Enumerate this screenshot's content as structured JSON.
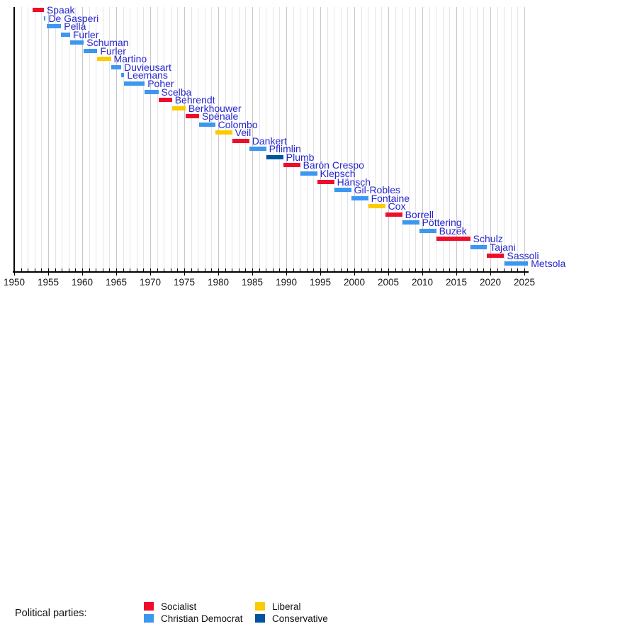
{
  "chart_data": {
    "type": "timeline",
    "x_axis": {
      "min": 1950,
      "max": 2026,
      "major_tick_step": 5,
      "minor_tick_step": 1,
      "tick_labels": [
        "1950",
        "1955",
        "1960",
        "1965",
        "1970",
        "1975",
        "1980",
        "1985",
        "1990",
        "1995",
        "2000",
        "2005",
        "2010",
        "2015",
        "2020",
        "2025"
      ]
    },
    "grid": true,
    "parties": [
      {
        "id": "socialist",
        "label": "Socialist",
        "color": "#ED0E2C"
      },
      {
        "id": "christian-democrat",
        "label": "Christian Democrat",
        "color": "#3C97F0"
      },
      {
        "id": "liberal",
        "label": "Liberal",
        "color": "#FACC00"
      },
      {
        "id": "conservative",
        "label": "Conservative",
        "color": "#00549E"
      }
    ],
    "legend": {
      "title": "Political parties:",
      "position": "bottom"
    },
    "bars": [
      {
        "name": "Spaak",
        "party": "socialist",
        "start": 1952.7,
        "end": 1954.36
      },
      {
        "name": "De Gasperi",
        "party": "christian-democrat",
        "start": 1954.36,
        "end": 1954.63
      },
      {
        "name": "Pella",
        "party": "christian-democrat",
        "start": 1954.8,
        "end": 1956.9
      },
      {
        "name": "Furler",
        "party": "christian-democrat",
        "start": 1956.9,
        "end": 1958.21
      },
      {
        "name": "Schuman",
        "party": "christian-democrat",
        "start": 1958.21,
        "end": 1960.24
      },
      {
        "name": "Furler",
        "party": "christian-democrat",
        "start": 1960.24,
        "end": 1962.23
      },
      {
        "name": "Martino",
        "party": "liberal",
        "start": 1962.23,
        "end": 1964.22
      },
      {
        "name": "Duvieusart",
        "party": "christian-democrat",
        "start": 1964.22,
        "end": 1965.73
      },
      {
        "name": "Leemans",
        "party": "christian-democrat",
        "start": 1965.73,
        "end": 1966.18
      },
      {
        "name": "Poher",
        "party": "christian-democrat",
        "start": 1966.18,
        "end": 1969.19
      },
      {
        "name": "Scelba",
        "party": "christian-democrat",
        "start": 1969.19,
        "end": 1971.2
      },
      {
        "name": "Behrendt",
        "party": "socialist",
        "start": 1971.2,
        "end": 1973.2
      },
      {
        "name": "Berkhouwer",
        "party": "liberal",
        "start": 1973.2,
        "end": 1975.19
      },
      {
        "name": "Spénale",
        "party": "socialist",
        "start": 1975.19,
        "end": 1977.18
      },
      {
        "name": "Colombo",
        "party": "christian-democrat",
        "start": 1977.18,
        "end": 1979.54
      },
      {
        "name": "Veil",
        "party": "liberal",
        "start": 1979.54,
        "end": 1982.05
      },
      {
        "name": "Dankert",
        "party": "socialist",
        "start": 1982.05,
        "end": 1984.56
      },
      {
        "name": "Pflimlin",
        "party": "christian-democrat",
        "start": 1984.56,
        "end": 1987.05
      },
      {
        "name": "Plumb",
        "party": "conservative",
        "start": 1987.05,
        "end": 1989.56
      },
      {
        "name": "Barón Crespo",
        "party": "socialist",
        "start": 1989.56,
        "end": 1992.04
      },
      {
        "name": "Klepsch",
        "party": "christian-democrat",
        "start": 1992.04,
        "end": 1994.55
      },
      {
        "name": "Hänsch",
        "party": "socialist",
        "start": 1994.55,
        "end": 1997.04
      },
      {
        "name": "Gil-Robles",
        "party": "christian-democrat",
        "start": 1997.04,
        "end": 1999.55
      },
      {
        "name": "Fontaine",
        "party": "christian-democrat",
        "start": 1999.55,
        "end": 2002.04
      },
      {
        "name": "Cox",
        "party": "liberal",
        "start": 2002.04,
        "end": 2004.55
      },
      {
        "name": "Borrell",
        "party": "socialist",
        "start": 2004.55,
        "end": 2007.04
      },
      {
        "name": "Pöttering",
        "party": "christian-democrat",
        "start": 2007.04,
        "end": 2009.54
      },
      {
        "name": "Buzek",
        "party": "christian-democrat",
        "start": 2009.54,
        "end": 2012.05
      },
      {
        "name": "Schulz",
        "party": "socialist",
        "start": 2012.05,
        "end": 2017.05
      },
      {
        "name": "Tajani",
        "party": "christian-democrat",
        "start": 2017.05,
        "end": 2019.5
      },
      {
        "name": "Sassoli",
        "party": "socialist",
        "start": 2019.5,
        "end": 2022.03
      },
      {
        "name": "Metsola",
        "party": "christian-democrat",
        "start": 2022.05,
        "end": 2025.55
      }
    ],
    "colors": {
      "president_label_text": "#2626CF",
      "axis": "#000000",
      "grid_minor": "#E4E4E4",
      "grid_major": "#C8C8C8"
    }
  }
}
